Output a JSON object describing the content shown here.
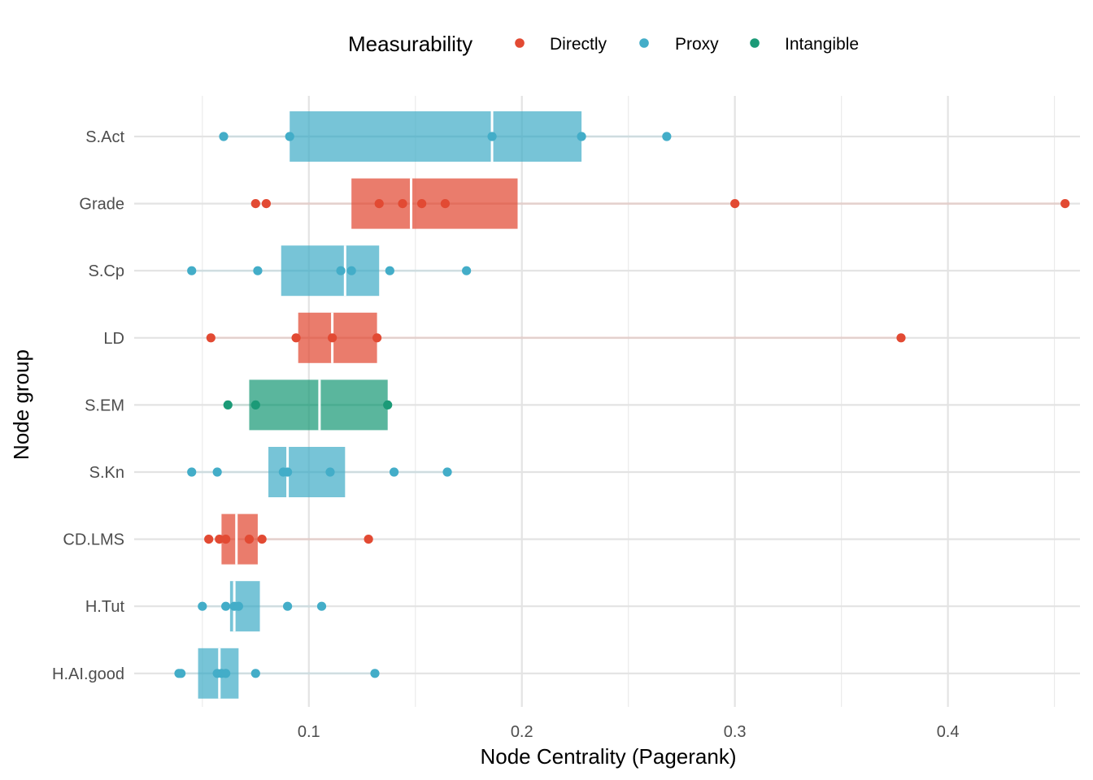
{
  "chart_data": {
    "type": "boxplot",
    "orientation": "horizontal",
    "xlabel": "Node Centrality (Pagerank)",
    "ylabel": "Node group",
    "xlim": [
      0.018,
      0.462
    ],
    "x_ticks": [
      0.1,
      0.2,
      0.3,
      0.4
    ],
    "x_tick_labels": [
      "0.1",
      "0.2",
      "0.3",
      "0.4"
    ],
    "grid": true,
    "legend": {
      "title": "Measurability",
      "position": "top",
      "entries": [
        {
          "name": "Directly",
          "color": "#e24a33"
        },
        {
          "name": "Proxy",
          "color": "#43adc8"
        },
        {
          "name": "Intangible",
          "color": "#1b9a77"
        }
      ]
    },
    "groups": [
      {
        "name": "S.Act",
        "measurability": "Proxy",
        "q1": 0.091,
        "median": 0.186,
        "q3": 0.228,
        "points": [
          0.06,
          0.091,
          0.186,
          0.228,
          0.268
        ]
      },
      {
        "name": "Grade",
        "measurability": "Directly",
        "q1": 0.12,
        "median": 0.148,
        "q3": 0.198,
        "points": [
          0.075,
          0.08,
          0.133,
          0.144,
          0.153,
          0.164,
          0.3,
          0.455
        ]
      },
      {
        "name": "S.Cp",
        "measurability": "Proxy",
        "q1": 0.087,
        "median": 0.117,
        "q3": 0.133,
        "points": [
          0.045,
          0.076,
          0.115,
          0.12,
          0.138,
          0.174
        ]
      },
      {
        "name": "LD",
        "measurability": "Directly",
        "q1": 0.095,
        "median": 0.111,
        "q3": 0.132,
        "points": [
          0.054,
          0.094,
          0.111,
          0.132,
          0.378
        ]
      },
      {
        "name": "S.EM",
        "measurability": "Intangible",
        "q1": 0.072,
        "median": 0.105,
        "q3": 0.137,
        "points": [
          0.062,
          0.075,
          0.137
        ]
      },
      {
        "name": "S.Kn",
        "measurability": "Proxy",
        "q1": 0.081,
        "median": 0.09,
        "q3": 0.117,
        "points": [
          0.045,
          0.057,
          0.088,
          0.09,
          0.11,
          0.14,
          0.165
        ]
      },
      {
        "name": "CD.LMS",
        "measurability": "Directly",
        "q1": 0.059,
        "median": 0.066,
        "q3": 0.076,
        "points": [
          0.053,
          0.058,
          0.061,
          0.072,
          0.078,
          0.128
        ]
      },
      {
        "name": "H.Tut",
        "measurability": "Proxy",
        "q1": 0.063,
        "median": 0.065,
        "q3": 0.077,
        "points": [
          0.05,
          0.061,
          0.065,
          0.067,
          0.09,
          0.106
        ]
      },
      {
        "name": "H.AI.good",
        "measurability": "Proxy",
        "q1": 0.048,
        "median": 0.058,
        "q3": 0.067,
        "points": [
          0.039,
          0.04,
          0.057,
          0.059,
          0.061,
          0.075,
          0.131
        ]
      }
    ]
  }
}
